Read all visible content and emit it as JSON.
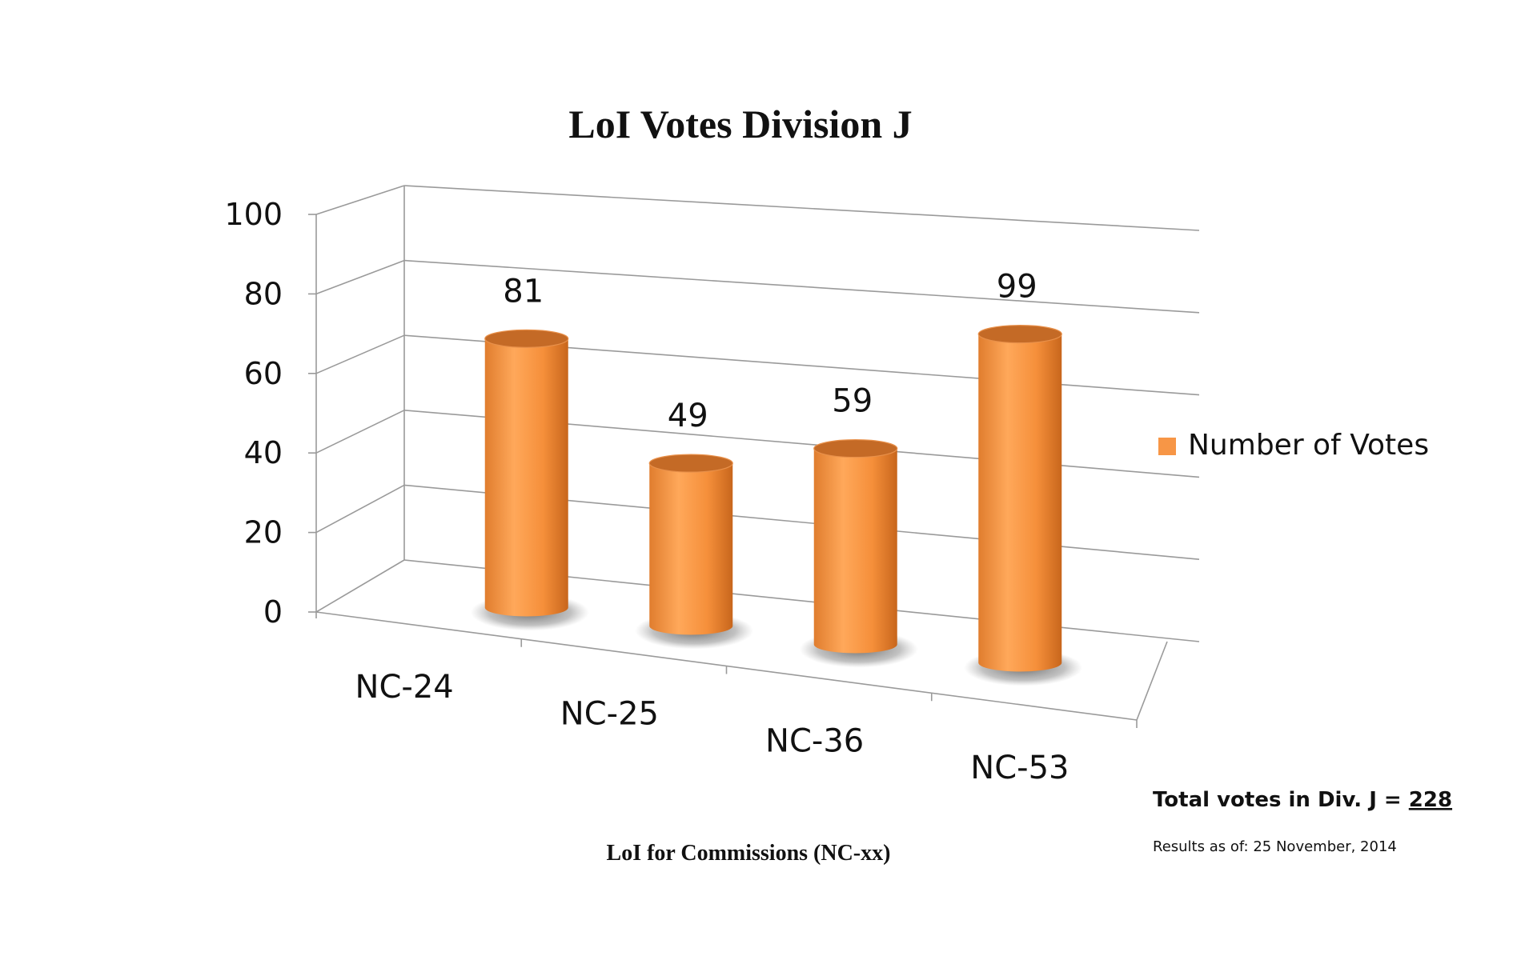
{
  "chart_data": {
    "type": "bar",
    "title": "LoI Votes Division J",
    "xlabel": "LoI for Commissions (NC-xx)",
    "ylabel": "",
    "categories": [
      "NC-24",
      "NC-25",
      "NC-36",
      "NC-53"
    ],
    "series": [
      {
        "name": "Number of Votes",
        "values": [
          81,
          49,
          59,
          99
        ]
      }
    ],
    "data_labels": [
      "81",
      "49",
      "59",
      "99"
    ],
    "ylim": [
      0,
      100
    ],
    "yticks": [
      0,
      20,
      40,
      60,
      80,
      100
    ],
    "ytick_labels": [
      "0",
      "20",
      "40",
      "60",
      "80",
      "100"
    ],
    "grid": true,
    "style": "3d-cylinder",
    "legend_position": "right",
    "bar_color": "#F79646"
  },
  "notes": {
    "total_prefix": "Total votes in Div. J = ",
    "total_value": "228",
    "results_as_of": "Results as of: 25 November, 2014"
  }
}
